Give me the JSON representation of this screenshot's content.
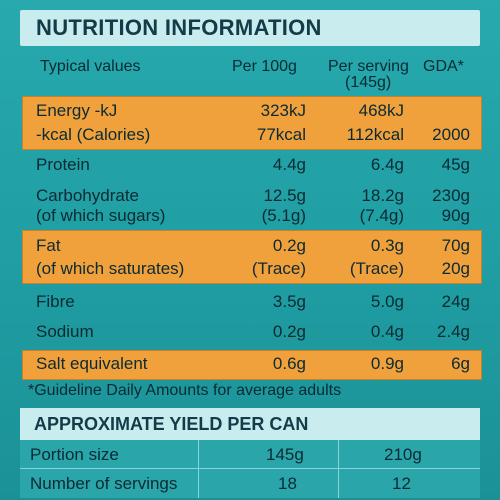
{
  "title": "NUTRITION INFORMATION",
  "columns": {
    "label": "Typical values",
    "per100": "Per 100g",
    "perServing": "Per serving",
    "perServingSub": "(145g)",
    "gda": "GDA*"
  },
  "rows": {
    "energy_kj": {
      "label": "Energy -kJ",
      "per100": "323kJ",
      "perServing": "468kJ",
      "gda": ""
    },
    "energy_kcal": {
      "label": "-kcal (Calories)",
      "per100": "77kcal",
      "perServing": "112kcal",
      "gda": "2000"
    },
    "protein": {
      "label": "Protein",
      "per100": "4.4g",
      "perServing": "6.4g",
      "gda": "45g"
    },
    "carbohydrate": {
      "label": "Carbohydrate",
      "per100": "12.5g",
      "perServing": "18.2g",
      "gda": "230g"
    },
    "sugars": {
      "label": "(of which sugars)",
      "per100": "(5.1g)",
      "perServing": "(7.4g)",
      "gda": "90g"
    },
    "fat": {
      "label": "Fat",
      "per100": "0.2g",
      "perServing": "0.3g",
      "gda": "70g"
    },
    "saturates": {
      "label": "(of which saturates)",
      "per100": "(Trace)",
      "perServing": "(Trace)",
      "gda": "20g"
    },
    "fibre": {
      "label": "Fibre",
      "per100": "3.5g",
      "perServing": "5.0g",
      "gda": "24g"
    },
    "sodium": {
      "label": "Sodium",
      "per100": "0.2g",
      "perServing": "0.4g",
      "gda": "2.4g"
    },
    "salt": {
      "label": "Salt equivalent",
      "per100": "0.6g",
      "perServing": "0.9g",
      "gda": "6g"
    }
  },
  "footnote": "*Guideline Daily Amounts for average adults",
  "yield": {
    "title": "APPROXIMATE YIELD PER CAN",
    "portion_label": "Portion size",
    "portion_a": "145g",
    "portion_b": "210g",
    "servings_label": "Number of servings",
    "servings_a": "18",
    "servings_b": "12"
  },
  "colors": {
    "background": "#1f9fa4",
    "highlight": "#f0a13c",
    "header_bar": "#c9ecef"
  }
}
